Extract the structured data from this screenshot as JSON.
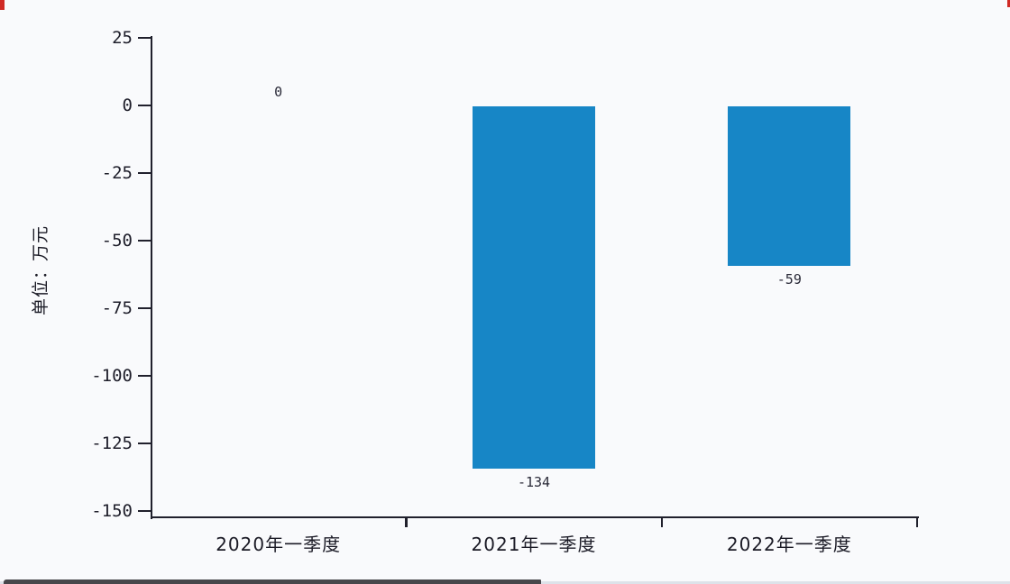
{
  "frame": {
    "corner_mark_color": "#d02a25",
    "bottom_bar_color": "#47474b",
    "background_color": "#f9fafc"
  },
  "chart_data": {
    "type": "bar",
    "title": "",
    "ylabel": "单位：万元",
    "xlabel": "",
    "categories": [
      "2020年一季度",
      "2021年一季度",
      "2022年一季度"
    ],
    "values": [
      0,
      -134,
      -59
    ],
    "value_labels": [
      "0",
      "-134",
      "-59"
    ],
    "y_ticks": [
      25,
      0,
      -25,
      -50,
      -75,
      -100,
      -125,
      -150
    ],
    "ylim": [
      -150,
      25
    ],
    "bar_color": "#1786c6",
    "axis_color": "#20202c",
    "grid": false,
    "legend_position": "none"
  }
}
